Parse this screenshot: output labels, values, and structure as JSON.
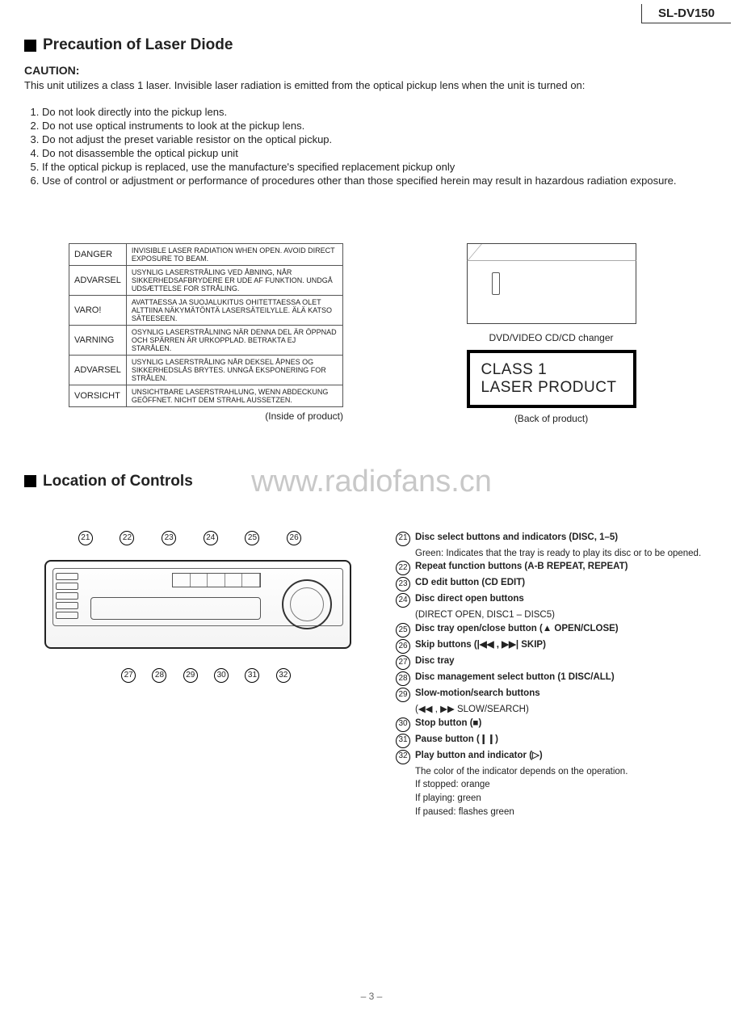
{
  "model": "SL-DV150",
  "section1_title": "Precaution of Laser Diode",
  "caution_label": "CAUTION:",
  "caution_body": "This unit utilizes a class 1 laser. Invisible laser radiation is emitted from the optical pickup lens when the unit is turned on:",
  "precautions": [
    "Do not look directly into the pickup lens.",
    "Do not use optical instruments to look at the pickup lens.",
    "Do not adjust the preset variable resistor on the optical pickup.",
    "Do not disassemble the optical pickup unit",
    "If the optical pickup is replaced, use the manufacture's specified replacement pickup only",
    "Use of control or adjustment or performance of procedures other than those specified herein may result in hazardous radiation exposure."
  ],
  "warnings": [
    {
      "lang": "DANGER",
      "text": "INVISIBLE LASER RADIATION WHEN OPEN. AVOID DIRECT EXPOSURE TO BEAM."
    },
    {
      "lang": "ADVARSEL",
      "text": "USYNLIG LASERSTRÅLING VED ÅBNING, NÅR SIKKERHEDSAFBRYDERE ER UDE AF FUNKTION. UNDGÅ UDSÆTTELSE FOR STRÅLING."
    },
    {
      "lang": "VARO!",
      "text": "AVATTAESSA JA SUOJALUKITUS OHITETTAESSA OLET ALTTIINA NÄKYMÄTÖNTÄ LASERSÄTEILYLLE.   ÄLÄ KATSO SÄTEESEEN."
    },
    {
      "lang": "VARNING",
      "text": "OSYNLIG LASERSTRÅLNING NÄR DENNA DEL ÄR ÖPPNAD OCH SPÄRREN ÄR URKOPPLAD.   BETRAKTA EJ STARÅLEN."
    },
    {
      "lang": "ADVARSEL",
      "text": "USYNLIG LASERSTRÅLING NÅR DEKSEL ÅPNES OG SIKKERHEDSLÅS BRYTES.   UNNGÅ EKSPONERING FOR STRÅLEN."
    },
    {
      "lang": "VORSICHT",
      "text": "UNSICHTBARE LASERSTRAHLUNG, WENN ABDECKUNG GEÖFFNET. NICHT DEM STRAHL AUSSETZEN."
    }
  ],
  "table_caption": "(Inside of product)",
  "device_label": "DVD/VIDEO CD/CD changer",
  "class_line1": "CLASS 1",
  "class_line2": "LASER PRODUCT",
  "back_caption": "(Back of product)",
  "watermark": "www.radiofans.cn",
  "section2_title": "Location of Controls",
  "callouts_top": [
    "21",
    "22",
    "23",
    "24",
    "25",
    "26"
  ],
  "callouts_bot": [
    "27",
    "28",
    "29",
    "30",
    "31",
    "32"
  ],
  "controls": [
    {
      "n": "21",
      "bold": "Disc select buttons and indicators (DISC, 1–5)",
      "sub": [
        "Green: Indicates that the tray is ready to play its disc or to be opened."
      ]
    },
    {
      "n": "22",
      "bold": "Repeat function buttons (A-B REPEAT, REPEAT)"
    },
    {
      "n": "23",
      "bold": "CD edit button (CD EDIT)"
    },
    {
      "n": "24",
      "bold": "Disc direct open buttons",
      "sub": [
        "(DIRECT OPEN, DISC1 – DISC5)"
      ]
    },
    {
      "n": "25",
      "bold": "Disc tray open/close button (▲ OPEN/CLOSE)"
    },
    {
      "n": "26",
      "bold": "Skip buttons (|◀◀ , ▶▶| SKIP)"
    },
    {
      "n": "27",
      "bold": "Disc tray"
    },
    {
      "n": "28",
      "bold": "Disc management select button (1 DISC/ALL)"
    },
    {
      "n": "29",
      "bold": "Slow-motion/search buttons",
      "sub": [
        "(◀◀ , ▶▶ SLOW/SEARCH)"
      ]
    },
    {
      "n": "30",
      "bold": "Stop button (■)"
    },
    {
      "n": "31",
      "bold": "Pause button (❙❙)"
    },
    {
      "n": "32",
      "bold": "Play button and indicator (▷)",
      "sub": [
        "The color of the indicator depends on the operation.",
        "If stopped: orange",
        "If playing: green",
        "If paused: flashes green"
      ]
    }
  ],
  "page_num": "– 3 –"
}
